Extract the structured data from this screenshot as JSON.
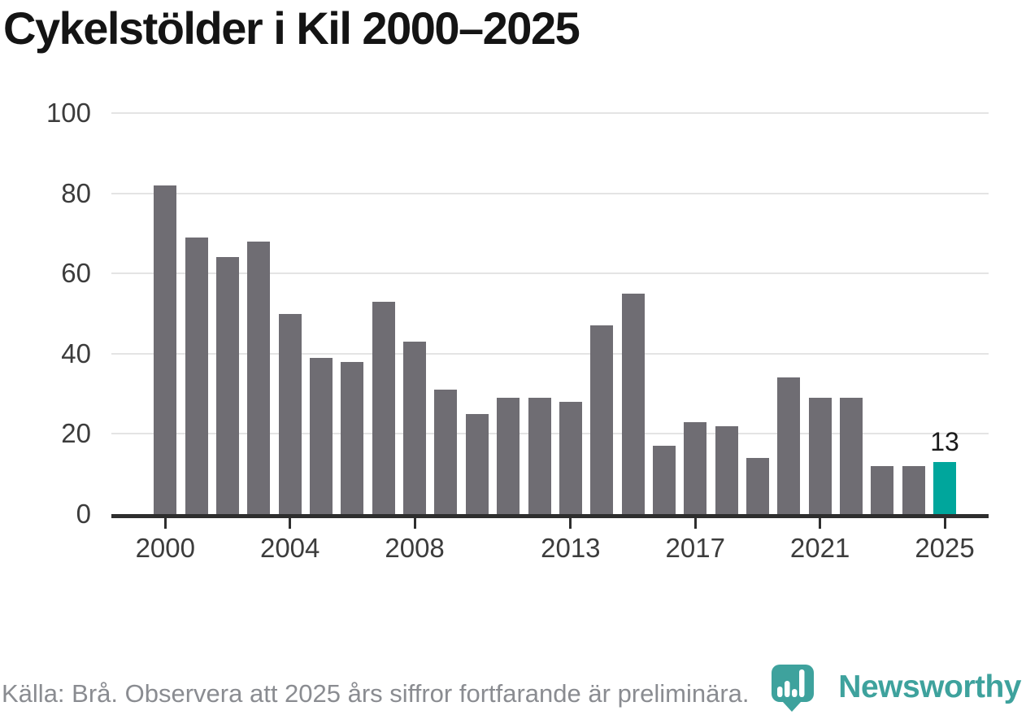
{
  "title": "Cykelstölder i Kil 2000–2025",
  "chart_data": {
    "type": "bar",
    "title": "Cykelstölder i Kil 2000–2025",
    "categories": [
      "2000",
      "2001",
      "2002",
      "2003",
      "2004",
      "2005",
      "2006",
      "2007",
      "2008",
      "2009",
      "2010",
      "2011",
      "2012",
      "2013",
      "2014",
      "2015",
      "2016",
      "2017",
      "2018",
      "2019",
      "2020",
      "2021",
      "2022",
      "2023",
      "2024",
      "2025"
    ],
    "values": [
      82,
      69,
      64,
      68,
      50,
      39,
      38,
      53,
      43,
      31,
      25,
      29,
      29,
      28,
      47,
      55,
      17,
      23,
      22,
      14,
      34,
      29,
      29,
      12,
      12,
      13
    ],
    "highlight_category": "2025",
    "highlight_index": 25,
    "highlight_label": "13",
    "xlabel": "",
    "ylabel": "",
    "ylim": [
      0,
      100
    ],
    "y_ticks": [
      0,
      20,
      40,
      60,
      80,
      100
    ],
    "x_tick_labels": [
      "2000",
      "2004",
      "2008",
      "2013",
      "2017",
      "2021",
      "2025"
    ],
    "grid": true,
    "legend": "none",
    "bar_color": "#6F6D73",
    "highlight_color": "#00A69C",
    "gridline_color": "#E4E4E4",
    "axis_color": "#2E2E2E"
  },
  "footer": {
    "source_text": "Källa: Brå. Observera att 2025 års siffror fortfarande är preliminära."
  },
  "branding": {
    "wordmark": "Newsworthy",
    "logo_color": "#3EA29D",
    "logo_icon": "newsworthy-bubble-bar-chart-icon"
  }
}
